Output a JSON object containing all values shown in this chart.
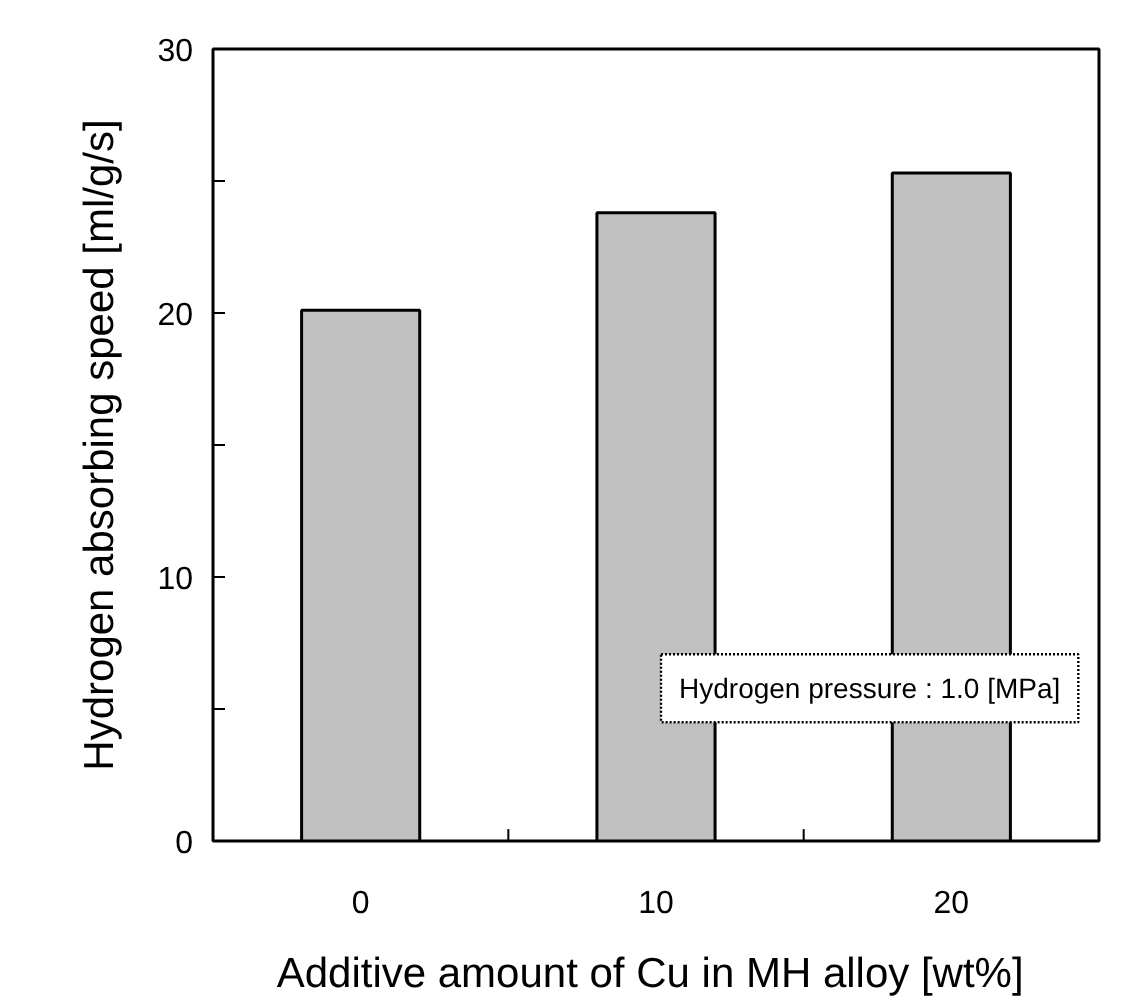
{
  "chart_data": {
    "type": "bar",
    "xlabel": "Additive amount of  Cu in MH alloy [wt%]",
    "ylabel": "Hydrogen absorbing speed [ml/g/s]",
    "categories": [
      "0",
      "10",
      "20"
    ],
    "values": [
      20.1,
      23.8,
      25.3
    ],
    "color": "#c0c0c0",
    "ylim": [
      0,
      30
    ],
    "yticks": [
      0,
      {
        "value": 5,
        "label": null
      },
      10,
      {
        "value": 15,
        "label": null
      },
      20,
      {
        "value": 25,
        "label": null
      },
      30
    ],
    "annotations": [
      "Hydrogen pressure : 1.0 [MPa]"
    ],
    "grid": false
  }
}
